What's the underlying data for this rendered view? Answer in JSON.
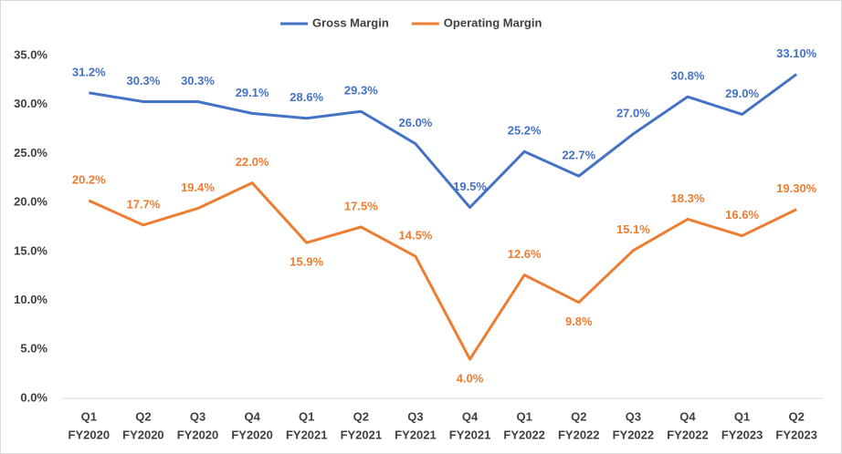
{
  "chart_data": {
    "type": "line",
    "categories": [
      [
        "Q1",
        "FY2020"
      ],
      [
        "Q2",
        "FY2020"
      ],
      [
        "Q3",
        "FY2020"
      ],
      [
        "Q4",
        "FY2020"
      ],
      [
        "Q1",
        "FY2021"
      ],
      [
        "Q2",
        "FY2021"
      ],
      [
        "Q3",
        "FY2021"
      ],
      [
        "Q4",
        "FY2021"
      ],
      [
        "Q1",
        "FY2022"
      ],
      [
        "Q2",
        "FY2022"
      ],
      [
        "Q3",
        "FY2022"
      ],
      [
        "Q4",
        "FY2022"
      ],
      [
        "Q1",
        "FY2023"
      ],
      [
        "Q2",
        "FY2023"
      ]
    ],
    "series": [
      {
        "name": "Gross Margin",
        "color": "#4472c4",
        "values": [
          31.2,
          30.3,
          30.3,
          29.1,
          28.6,
          29.3,
          26.0,
          19.5,
          25.2,
          22.7,
          27.0,
          30.8,
          29.0,
          33.1
        ],
        "value_labels": [
          "31.2%",
          "30.3%",
          "30.3%",
          "29.1%",
          "28.6%",
          "29.3%",
          "26.0%",
          "19.5%",
          "25.2%",
          "22.7%",
          "27.0%",
          "30.8%",
          "29.0%",
          "33.10%"
        ]
      },
      {
        "name": "Operating Margin",
        "color": "#ed7d31",
        "values": [
          20.2,
          17.7,
          19.4,
          22.0,
          15.9,
          17.5,
          14.5,
          4.0,
          12.6,
          9.8,
          15.1,
          18.3,
          16.6,
          19.3
        ],
        "value_labels": [
          "20.2%",
          "17.7%",
          "19.4%",
          "22.0%",
          "15.9%",
          "17.5%",
          "14.5%",
          "4.0%",
          "12.6%",
          "9.8%",
          "15.1%",
          "18.3%",
          "16.6%",
          "19.30%"
        ]
      }
    ],
    "ylim": [
      0,
      35
    ],
    "yticks": [
      {
        "value": 0,
        "label": "0.0%"
      },
      {
        "value": 5,
        "label": "5.0%"
      },
      {
        "value": 10,
        "label": "10.0%"
      },
      {
        "value": 15,
        "label": "15.0%"
      },
      {
        "value": 20,
        "label": "20.0%"
      },
      {
        "value": 25,
        "label": "25.0%"
      },
      {
        "value": 30,
        "label": "30.0%"
      },
      {
        "value": 35,
        "label": "35.0%"
      }
    ],
    "grid": false,
    "legend": "top"
  }
}
